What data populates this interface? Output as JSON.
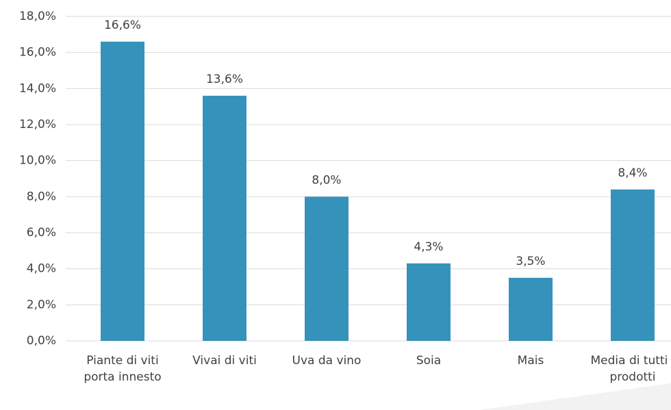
{
  "chart_data": {
    "type": "bar",
    "categories": [
      "Piante di viti porta innesto",
      "Vivai di viti",
      "Uva da vino",
      "Soia",
      "Mais",
      "Media di tutti i prodotti"
    ],
    "values": [
      16.6,
      13.6,
      8.0,
      4.3,
      3.5,
      8.4
    ],
    "value_labels": [
      "16,6%",
      "13,6%",
      "8,0%",
      "4,3%",
      "3,5%",
      "8,4%"
    ],
    "color": "#3592bb",
    "ylim": [
      0,
      18
    ],
    "yticks": [
      {
        "value": 0,
        "label": "0,0%"
      },
      {
        "value": 2,
        "label": "2,0%"
      },
      {
        "value": 4,
        "label": "4,0%"
      },
      {
        "value": 6,
        "label": "6,0%"
      },
      {
        "value": 8,
        "label": "8,0%"
      },
      {
        "value": 10,
        "label": "10,0%"
      },
      {
        "value": 12,
        "label": "12,0%"
      },
      {
        "value": 14,
        "label": "14,0%"
      },
      {
        "value": 16,
        "label": "16,0%"
      },
      {
        "value": 18,
        "label": "18,0%"
      }
    ],
    "grid": true
  }
}
